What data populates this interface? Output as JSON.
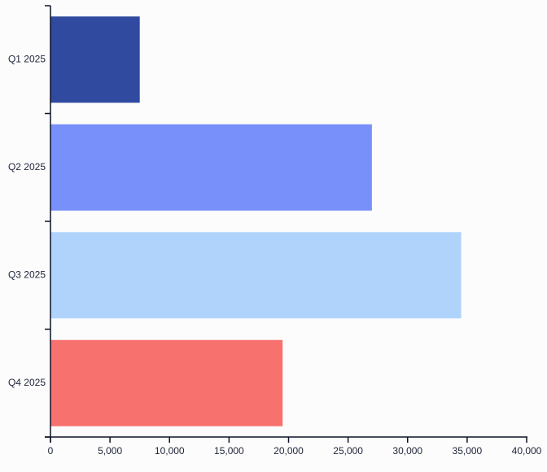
{
  "chart_data": {
    "type": "bar",
    "orientation": "horizontal",
    "title": "",
    "xlabel": "",
    "ylabel": "",
    "categories": [
      "Q1 2025",
      "Q2 2025",
      "Q3 2025",
      "Q4 2025"
    ],
    "values": [
      7500,
      27000,
      34500,
      19500
    ],
    "bar_colors": [
      "#2F4A9E",
      "#7790FA",
      "#AFD3FB",
      "#F7726F"
    ],
    "xlim": [
      0,
      40000
    ],
    "x_ticks": [
      0,
      5000,
      10000,
      15000,
      20000,
      25000,
      30000,
      35000,
      40000
    ],
    "x_tick_labels": [
      "0",
      "5,000",
      "10,000",
      "15,000",
      "20,000",
      "25,000",
      "30,000",
      "35,000",
      "40,000"
    ],
    "grid": false,
    "legend": false,
    "axis_color": "#0D1326",
    "label_color": "#20273A",
    "background_color": "#FCFCFC"
  }
}
